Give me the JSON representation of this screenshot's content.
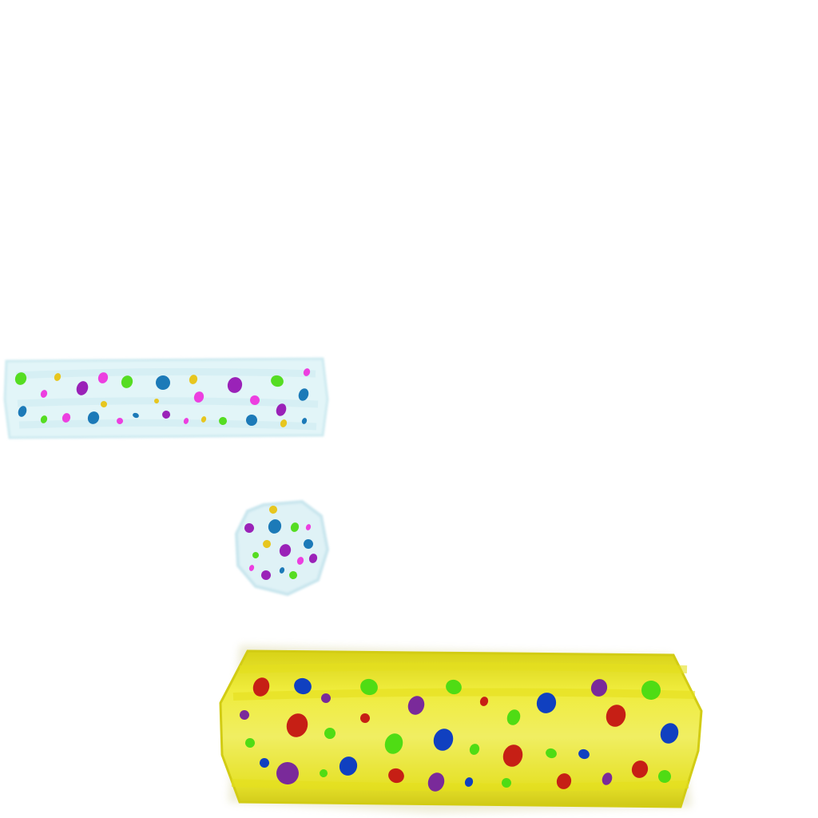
{
  "sprites": [
    {
      "id": "light-blue-bar",
      "shape": "bar",
      "fill_color": "#e2f5f8",
      "edge_color": "#cdeaf0",
      "dot_colors": [
        "#55dd22",
        "#e7c61f",
        "#9a22b8",
        "#ec3fe0",
        "#1c7ab8"
      ]
    },
    {
      "id": "light-blue-ball",
      "shape": "ball",
      "fill_color": "#dff2f6",
      "edge_color": "#c9e6ee",
      "dot_colors": [
        "#e7c61f",
        "#9a22b8",
        "#1c7ab8",
        "#55dd22",
        "#ec3fe0"
      ]
    },
    {
      "id": "yellow-paddle",
      "shape": "bar",
      "fill_color": "#eeea2a",
      "edge_color": "#d2cc14",
      "dot_colors": [
        "#c61f15",
        "#1040c0",
        "#4fdc14",
        "#7a2a9a"
      ]
    }
  ]
}
